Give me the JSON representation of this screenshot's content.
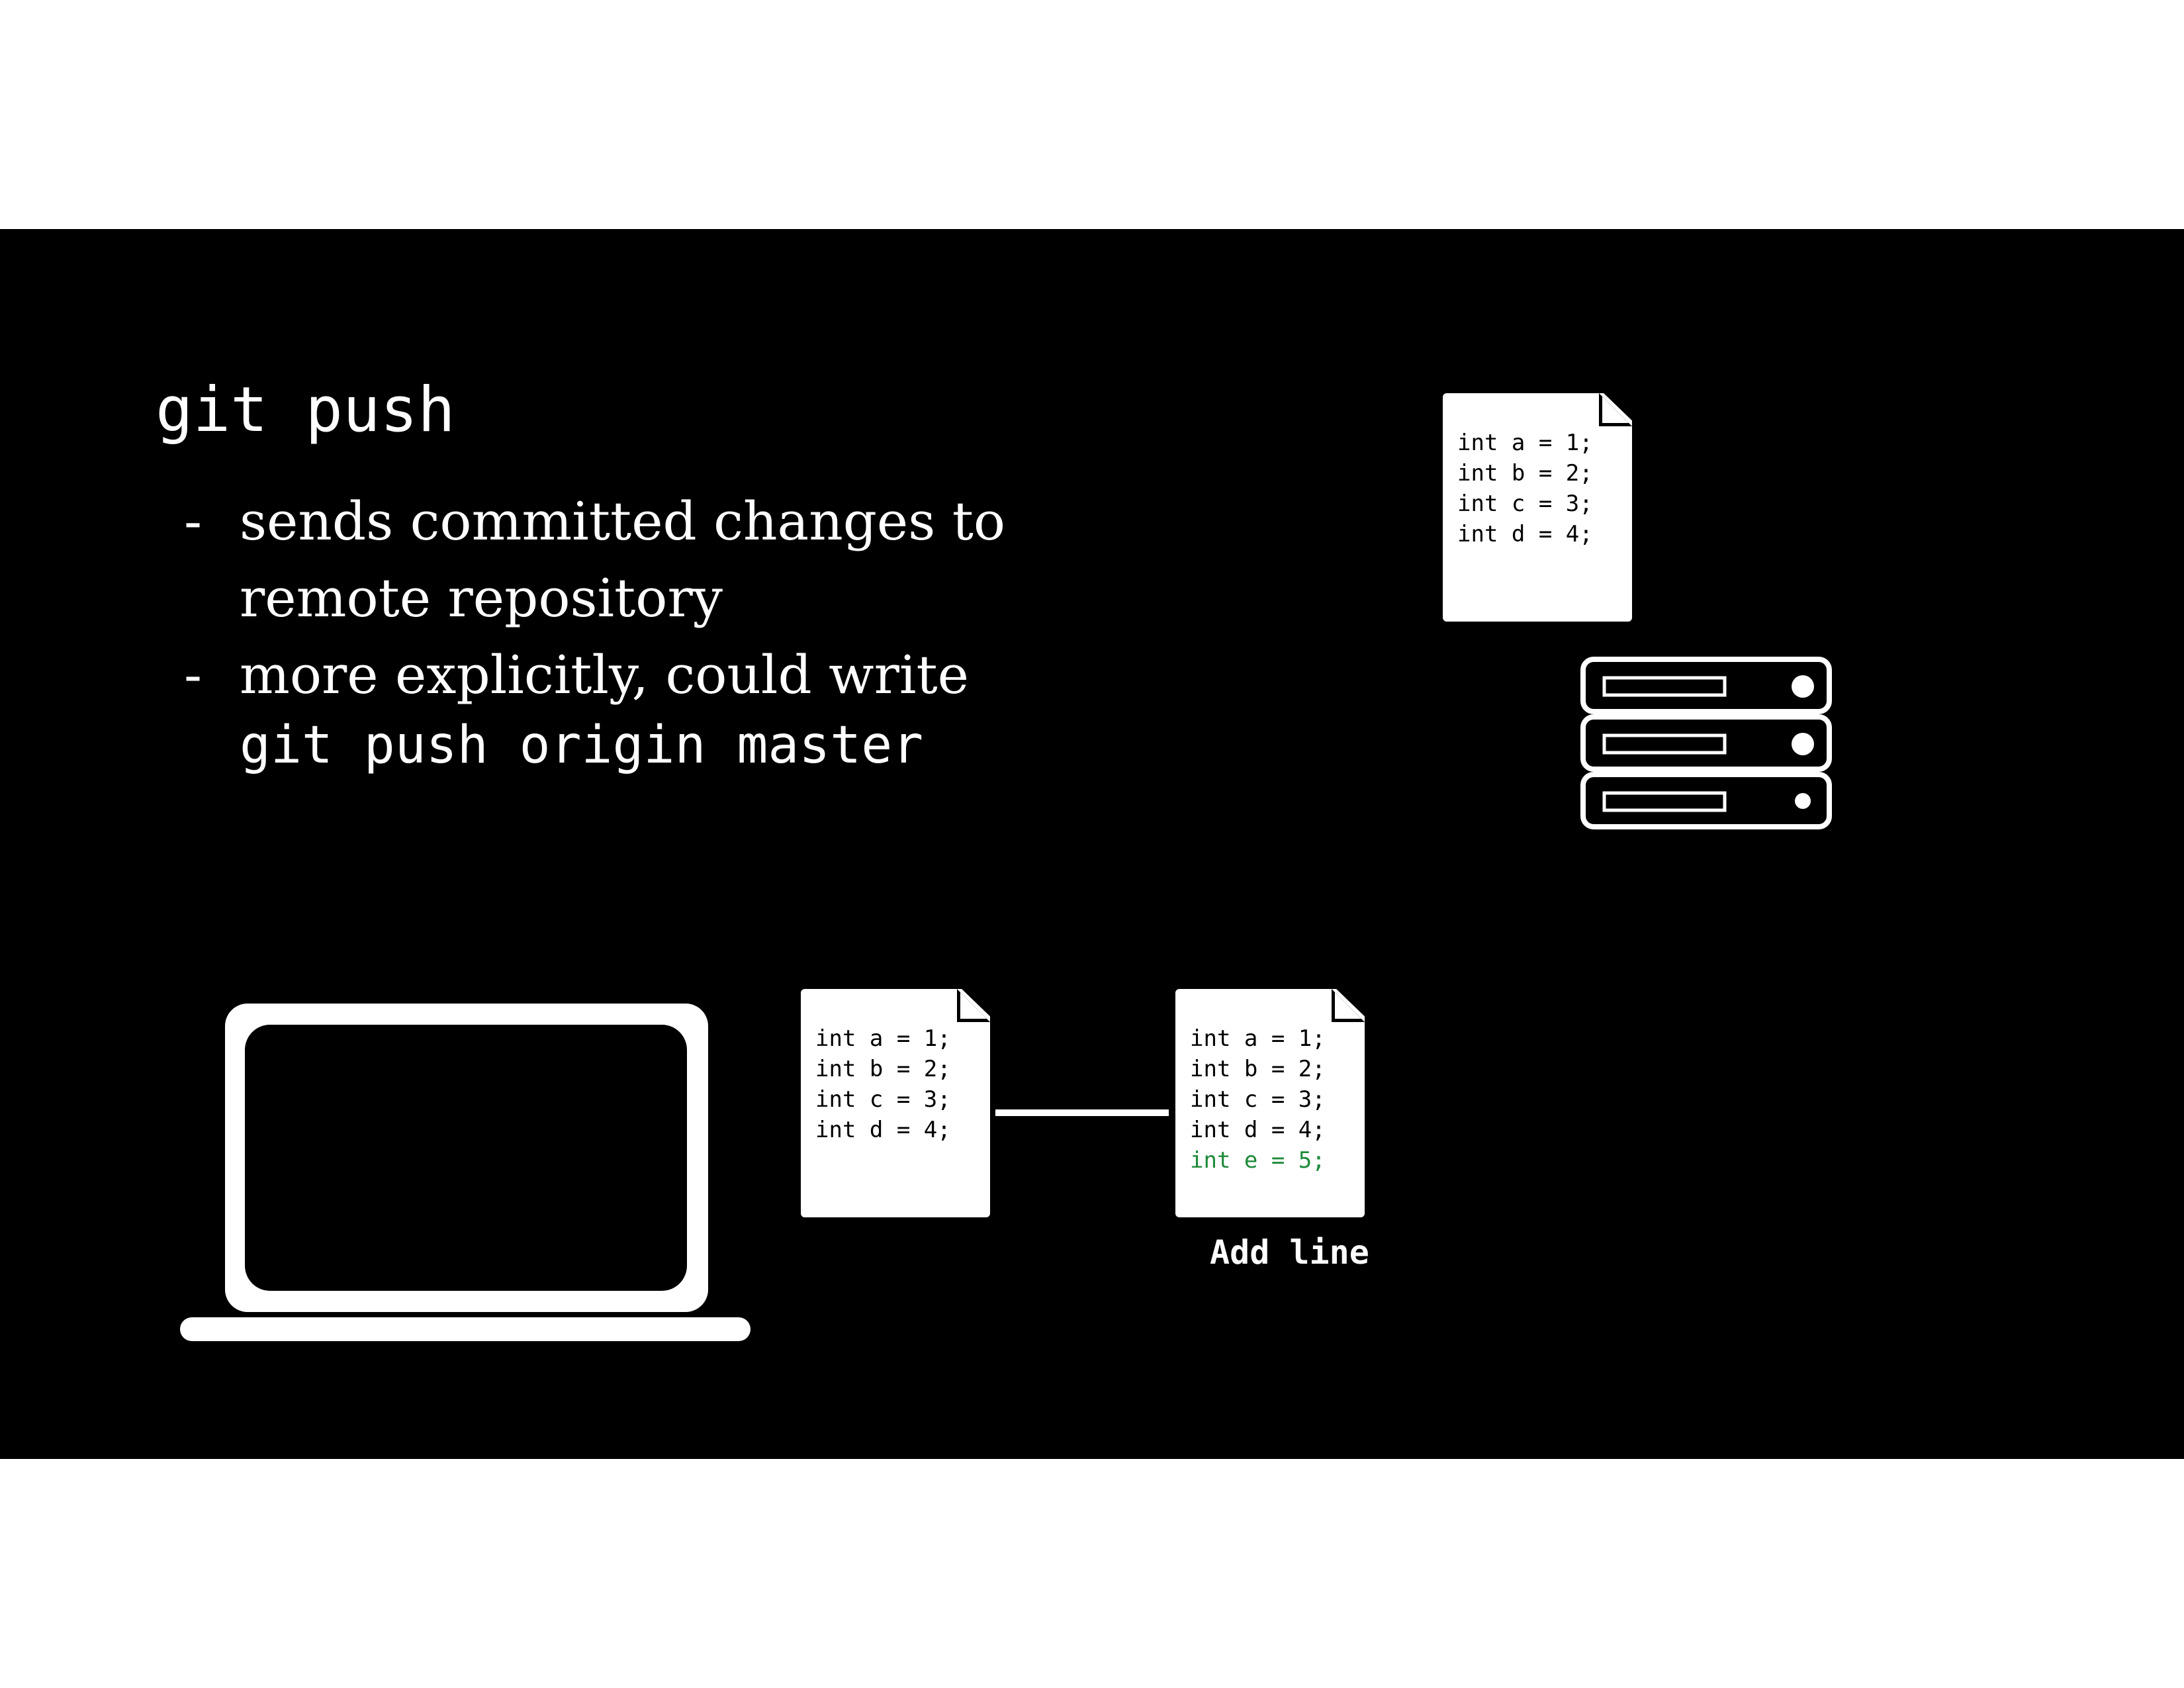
{
  "slide": {
    "title": "git push",
    "bullets": [
      {
        "text": "sends committed changes to remote repository"
      },
      {
        "text": "more explicitly, could write",
        "code": "git push origin master"
      }
    ],
    "bullet_marker": "-"
  },
  "remote_file": {
    "lines": [
      "int a = 1;",
      "int b = 2;",
      "int c = 3;",
      "int d = 4;"
    ]
  },
  "local_commits": [
    {
      "lines": [
        "int a = 1;",
        "int b = 2;",
        "int c = 3;",
        "int d = 4;"
      ]
    },
    {
      "lines": [
        "int a = 1;",
        "int b = 2;",
        "int c = 3;",
        "int d = 4;"
      ],
      "added_line": "int e = 5;",
      "caption": "Add line"
    }
  ],
  "colors": {
    "background": "#000000",
    "foreground": "#ffffff",
    "added_line": "#1e8a3a"
  },
  "icons": {
    "remote": "server-icon",
    "local": "laptop-icon",
    "file": "document-icon"
  }
}
